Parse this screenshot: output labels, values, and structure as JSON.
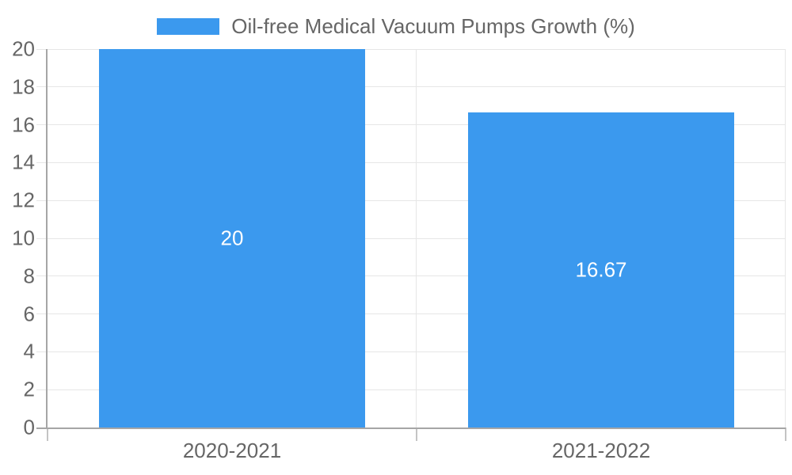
{
  "legend": {
    "items": [
      {
        "label": "Oil-free Medical Vacuum Pumps Growth (%)",
        "color": "#3b99ee"
      }
    ]
  },
  "chart_data": {
    "type": "bar",
    "title": "Oil-free Medical Vacuum Pumps Growth (%)",
    "categories": [
      "2020-2021",
      "2021-2022"
    ],
    "values": [
      20,
      16.67
    ],
    "data_labels": [
      "20",
      "16.67"
    ],
    "ylim": [
      0,
      20
    ],
    "ytick_step": 2,
    "ytick_labels": [
      "0",
      "2",
      "4",
      "6",
      "8",
      "10",
      "12",
      "14",
      "16",
      "18",
      "20"
    ],
    "xlabel": "",
    "ylabel": "",
    "grid": true,
    "legend_position": "top-center",
    "colors": {
      "bar": "#3b99ee",
      "data_label_text": "#ffffff",
      "axis_line": "#a6a6a6",
      "tick": "#c4c4c4",
      "gridline": "#e6e6e6",
      "axis_text": "#666666",
      "legend_text": "#666666",
      "background": "#ffffff"
    }
  }
}
